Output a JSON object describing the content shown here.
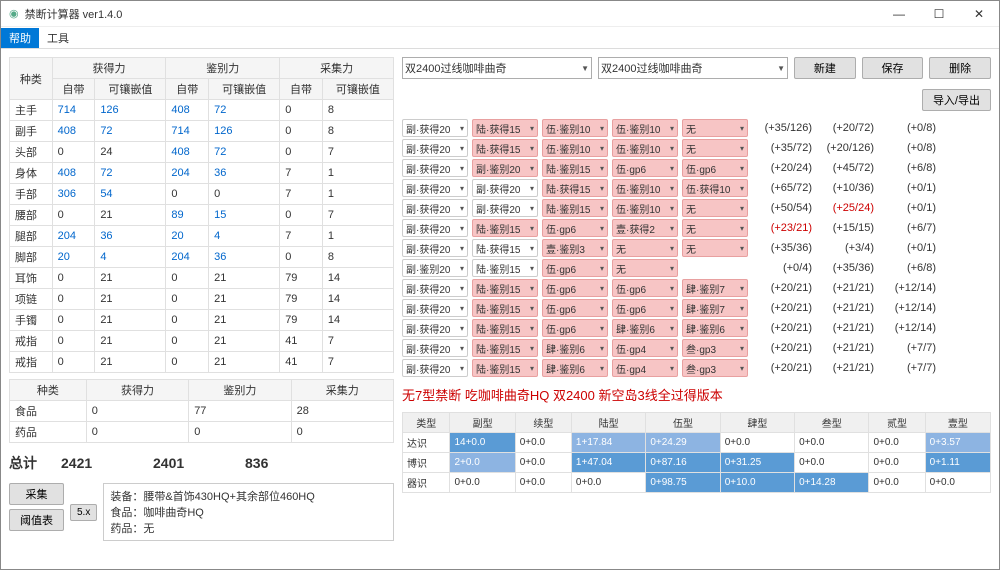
{
  "window": {
    "title": "禁断计算器 ver1.4.0"
  },
  "menu": {
    "help": "帮助",
    "tools": "工具"
  },
  "stats_table": {
    "headers": {
      "type": "种类",
      "gain": "获得力",
      "disc": "鉴别力",
      "coll": "采集力",
      "self": "自带",
      "materia": "可镶嵌值"
    },
    "rows": [
      {
        "name": "主手",
        "v": [
          "714",
          "126",
          "408",
          "72",
          "0",
          "8"
        ],
        "blue_idx": [
          0,
          1,
          2,
          3
        ]
      },
      {
        "name": "副手",
        "v": [
          "408",
          "72",
          "714",
          "126",
          "0",
          "8"
        ],
        "blue_idx": [
          0,
          1,
          2,
          3
        ]
      },
      {
        "name": "头部",
        "v": [
          "0",
          "24",
          "408",
          "72",
          "0",
          "7"
        ],
        "blue_idx": [
          2,
          3
        ]
      },
      {
        "name": "身体",
        "v": [
          "408",
          "72",
          "204",
          "36",
          "7",
          "1"
        ],
        "blue_idx": [
          0,
          1,
          2,
          3
        ]
      },
      {
        "name": "手部",
        "v": [
          "306",
          "54",
          "0",
          "0",
          "7",
          "1"
        ],
        "blue_idx": [
          0,
          1
        ]
      },
      {
        "name": "腰部",
        "v": [
          "0",
          "21",
          "89",
          "15",
          "0",
          "7"
        ],
        "blue_idx": [
          2,
          3
        ]
      },
      {
        "name": "腿部",
        "v": [
          "204",
          "36",
          "20",
          "4",
          "7",
          "1"
        ],
        "blue_idx": [
          0,
          1,
          2,
          3
        ]
      },
      {
        "name": "脚部",
        "v": [
          "20",
          "4",
          "204",
          "36",
          "0",
          "8"
        ],
        "blue_idx": [
          0,
          1,
          2,
          3
        ]
      },
      {
        "name": "耳饰",
        "v": [
          "0",
          "21",
          "0",
          "21",
          "79",
          "14"
        ]
      },
      {
        "name": "项链",
        "v": [
          "0",
          "21",
          "0",
          "21",
          "79",
          "14"
        ]
      },
      {
        "name": "手镯",
        "v": [
          "0",
          "21",
          "0",
          "21",
          "79",
          "14"
        ]
      },
      {
        "name": "戒指",
        "v": [
          "0",
          "21",
          "0",
          "21",
          "41",
          "7"
        ]
      },
      {
        "name": "戒指",
        "v": [
          "0",
          "21",
          "0",
          "21",
          "41",
          "7"
        ]
      }
    ]
  },
  "consumables": {
    "headers": [
      "种类",
      "获得力",
      "鉴别力",
      "采集力"
    ],
    "rows": [
      [
        "食品",
        "0",
        "77",
        "28"
      ],
      [
        "药品",
        "0",
        "0",
        "0"
      ]
    ]
  },
  "totals": {
    "label": "总计",
    "gain": "2421",
    "disc": "2401",
    "coll": "836"
  },
  "buttons": {
    "collect": "采集",
    "threshold": "阈值表",
    "five": "5.x",
    "newb": "新建",
    "save": "保存",
    "delete": "删除",
    "io": "导入/导出"
  },
  "info_box": {
    "l1": "装备：腰带&首饰430HQ+其余部位460HQ",
    "l2": "食品：咖啡曲奇HQ",
    "l3": "药品：无"
  },
  "top_selects": {
    "s1": "双2400过线咖啡曲奇",
    "s2": "双2400过线咖啡曲奇"
  },
  "grid_rows": [
    {
      "slots": [
        "副·获得20",
        "陆·获得15",
        "伍·鉴别10",
        "伍·鉴别10",
        "无"
      ],
      "pink": [
        0,
        1,
        1,
        1,
        1
      ],
      "res": [
        "(+35/126)",
        "(+20/72)",
        "(+0/8)"
      ]
    },
    {
      "slots": [
        "副·获得20",
        "陆·获得15",
        "伍·鉴别10",
        "伍·鉴别10",
        "无"
      ],
      "pink": [
        0,
        1,
        1,
        1,
        1
      ],
      "res": [
        "(+35/72)",
        "(+20/126)",
        "(+0/8)"
      ]
    },
    {
      "slots": [
        "副·获得20",
        "副·鉴别20",
        "陆·鉴别15",
        "伍·gp6",
        "伍·gp6"
      ],
      "pink": [
        0,
        1,
        1,
        1,
        1
      ],
      "res": [
        "(+20/24)",
        "(+45/72)",
        "(+6/8)"
      ]
    },
    {
      "slots": [
        "副·获得20",
        "副·获得20",
        "陆·获得15",
        "伍·鉴别10",
        "伍·获得10"
      ],
      "pink": [
        0,
        0,
        1,
        1,
        1
      ],
      "res": [
        "(+65/72)",
        "(+10/36)",
        "(+0/1)"
      ]
    },
    {
      "slots": [
        "副·获得20",
        "副·获得20",
        "陆·鉴别15",
        "伍·鉴别10",
        "无"
      ],
      "pink": [
        0,
        0,
        1,
        1,
        1
      ],
      "res": [
        "(+50/54)",
        "(+25/24)",
        "(+0/1)"
      ],
      "red": 1
    },
    {
      "slots": [
        "副·获得20",
        "陆·鉴别15",
        "伍·gp6",
        "壹·获得2",
        "无"
      ],
      "pink": [
        0,
        1,
        1,
        1,
        1
      ],
      "res": [
        "(+23/21)",
        "(+15/15)",
        "(+6/7)"
      ],
      "red": 0
    },
    {
      "slots": [
        "副·获得20",
        "陆·获得15",
        "壹·鉴别3",
        "无",
        "无"
      ],
      "pink": [
        0,
        0,
        1,
        1,
        1
      ],
      "res": [
        "(+35/36)",
        "(+3/4)",
        "(+0/1)"
      ]
    },
    {
      "slots": [
        "副·鉴别20",
        "陆·鉴别15",
        "伍·gp6",
        "无",
        ""
      ],
      "pink": [
        0,
        0,
        1,
        1,
        0
      ],
      "res": [
        "(+0/4)",
        "(+35/36)",
        "(+6/8)"
      ]
    },
    {
      "slots": [
        "副·获得20",
        "陆·鉴别15",
        "伍·gp6",
        "伍·gp6",
        "肆·鉴别7"
      ],
      "pink": [
        0,
        1,
        1,
        1,
        1
      ],
      "res": [
        "(+20/21)",
        "(+21/21)",
        "(+12/14)"
      ]
    },
    {
      "slots": [
        "副·获得20",
        "陆·鉴别15",
        "伍·gp6",
        "伍·gp6",
        "肆·鉴别7"
      ],
      "pink": [
        0,
        1,
        1,
        1,
        1
      ],
      "res": [
        "(+20/21)",
        "(+21/21)",
        "(+12/14)"
      ]
    },
    {
      "slots": [
        "副·获得20",
        "陆·鉴别15",
        "伍·gp6",
        "肆·鉴别6",
        "肆·鉴别6"
      ],
      "pink": [
        0,
        1,
        1,
        1,
        1
      ],
      "res": [
        "(+20/21)",
        "(+21/21)",
        "(+12/14)"
      ]
    },
    {
      "slots": [
        "副·获得20",
        "陆·鉴别15",
        "肆·鉴别6",
        "伍·gp4",
        "叁·gp3"
      ],
      "pink": [
        0,
        1,
        1,
        1,
        1
      ],
      "res": [
        "(+20/21)",
        "(+21/21)",
        "(+7/7)"
      ]
    },
    {
      "slots": [
        "副·获得20",
        "陆·鉴别15",
        "肆·鉴别6",
        "伍·gp4",
        "叁·gp3"
      ],
      "pink": [
        0,
        1,
        1,
        1,
        1
      ],
      "res": [
        "(+20/21)",
        "(+21/21)",
        "(+7/7)"
      ]
    }
  ],
  "note": "无7型禁断 吃咖啡曲奇HQ 双2400 新空岛3线全过得版本",
  "bottom_table": {
    "headers": [
      "类型",
      "副型",
      "续型",
      "陆型",
      "伍型",
      "肆型",
      "叁型",
      "贰型",
      "壹型"
    ],
    "rows": [
      {
        "label": "达识",
        "cells": [
          {
            "v": "14+0.0",
            "h": 1
          },
          {
            "v": "0+0.0"
          },
          {
            "v": "1+17.84",
            "h": 2
          },
          {
            "v": "0+24.29",
            "h": 2
          },
          {
            "v": "0+0.0"
          },
          {
            "v": "0+0.0"
          },
          {
            "v": "0+0.0"
          },
          {
            "v": "0+3.57",
            "h": 2
          }
        ]
      },
      {
        "label": "博识",
        "cells": [
          {
            "v": "2+0.0",
            "h": 2
          },
          {
            "v": "0+0.0"
          },
          {
            "v": "1+47.04",
            "h": 1
          },
          {
            "v": "0+87.16",
            "h": 1
          },
          {
            "v": "0+31.25",
            "h": 1
          },
          {
            "v": "0+0.0"
          },
          {
            "v": "0+0.0"
          },
          {
            "v": "0+1.11",
            "h": 1
          }
        ]
      },
      {
        "label": "器识",
        "cells": [
          {
            "v": "0+0.0"
          },
          {
            "v": "0+0.0"
          },
          {
            "v": "0+0.0"
          },
          {
            "v": "0+98.75",
            "h": 1
          },
          {
            "v": "0+10.0",
            "h": 1
          },
          {
            "v": "0+14.28",
            "h": 1
          },
          {
            "v": "0+0.0"
          },
          {
            "v": "0+0.0"
          }
        ]
      }
    ]
  },
  "icon": "◉"
}
